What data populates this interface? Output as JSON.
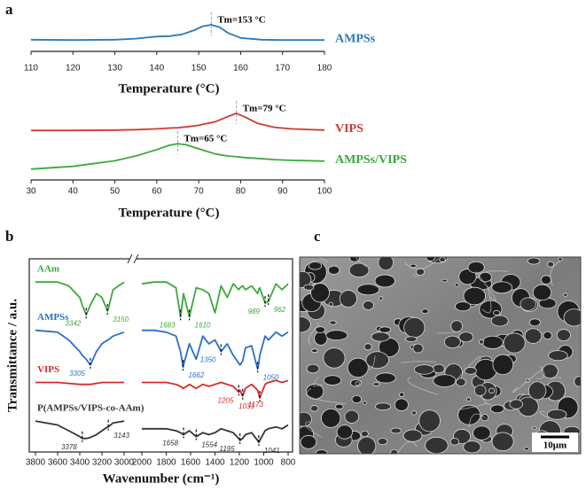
{
  "chart_data": [
    {
      "type": "line",
      "panel": "a",
      "x_label": "Temperature (°C)",
      "xlim": [
        110,
        180
      ],
      "xticks": [
        110,
        120,
        130,
        140,
        150,
        160,
        170,
        180
      ],
      "ylim": [
        0,
        10
      ],
      "x": [
        110,
        120,
        130,
        135,
        140,
        143,
        146,
        149,
        151,
        153,
        155,
        157,
        160,
        165,
        170,
        180
      ],
      "series": [
        {
          "name": "AMPSs",
          "color": "#2a7ab9",
          "values": [
            3.3,
            3.2,
            3.3,
            3.6,
            4.2,
            4.3,
            4.8,
            6.0,
            7.1,
            7.5,
            6.8,
            5.2,
            3.8,
            3.3,
            3.2,
            3.2
          ]
        }
      ],
      "annotations": [
        {
          "text": "Tm=153 °C",
          "x": 153,
          "y": 7.5
        }
      ]
    },
    {
      "type": "line",
      "x_label": "Temperature (°C)",
      "xlim": [
        30,
        100
      ],
      "xticks": [
        30,
        40,
        50,
        60,
        70,
        80,
        90,
        100
      ],
      "ylim": [
        0,
        20
      ],
      "x": [
        30,
        40,
        50,
        55,
        60,
        63,
        65,
        67,
        70,
        74,
        77,
        79,
        81,
        84,
        88,
        92,
        100
      ],
      "series": [
        {
          "name": "VIPS",
          "color": "#d03a2f",
          "values": [
            12.4,
            12.4,
            12.5,
            12.6,
            12.8,
            13.0,
            13.1,
            13.3,
            13.7,
            14.6,
            15.9,
            16.7,
            15.8,
            14.2,
            13.2,
            12.8,
            12.5
          ]
        },
        {
          "name": "AMPSs/VIPS",
          "color": "#3ca83c",
          "values": [
            2.7,
            3.4,
            4.8,
            6.0,
            7.6,
            8.7,
            9.1,
            8.8,
            7.8,
            6.5,
            6.0,
            5.8,
            5.6,
            5.4,
            5.1,
            4.9,
            4.7
          ]
        }
      ],
      "annotations": [
        {
          "text": "Tm=79 °C",
          "x": 79,
          "y": 16.7
        },
        {
          "text": "Tm=65 °C",
          "x": 65,
          "y": 9.1
        }
      ]
    },
    {
      "type": "line",
      "panel": "b",
      "x_label": "Wavenumber (cm⁻¹)",
      "y_label": "Transmittance / a.u.",
      "xlim": [
        3800,
        800
      ],
      "xbreak": [
        3000,
        2000
      ],
      "xticks": [
        3800,
        3600,
        3400,
        3200,
        3000,
        2000,
        1800,
        1600,
        1400,
        1200,
        1000,
        800
      ],
      "ylim": [
        0,
        100
      ],
      "x": [
        3800,
        3600,
        3500,
        3400,
        3378,
        3342,
        3305,
        3250,
        3200,
        3150,
        3143,
        3100,
        3000,
        2500,
        2000,
        1900,
        1800,
        1720,
        1683,
        1662,
        1658,
        1610,
        1554,
        1500,
        1450,
        1400,
        1350,
        1300,
        1250,
        1205,
        1195,
        1173,
        1150,
        1100,
        1050,
        1041,
        1033,
        989,
        962,
        900,
        850,
        800
      ],
      "series": [
        {
          "name": "AAm",
          "color": "#3ca83c",
          "peaks": [
            3342,
            3150,
            1683,
            1610,
            989,
            962
          ],
          "values": [
            88,
            88,
            86,
            80,
            76,
            71,
            76,
            82,
            80,
            73,
            74,
            84,
            88,
            null,
            87,
            88,
            88,
            85,
            70,
            80,
            82,
            70,
            85,
            84,
            82,
            72,
            86,
            80,
            87,
            84,
            85,
            86,
            84,
            86,
            82,
            84,
            85,
            77,
            78,
            87,
            84,
            87
          ]
        },
        {
          "name": "AMPSs",
          "color": "#2a6fc9",
          "peaks": [
            3305,
            1662,
            1350,
            1050
          ],
          "values": [
            63,
            62,
            58,
            52,
            50,
            48,
            45,
            52,
            56,
            58,
            58,
            60,
            62,
            null,
            63,
            63,
            62,
            60,
            52,
            44,
            45,
            56,
            48,
            60,
            56,
            58,
            52,
            56,
            50,
            46,
            45,
            47,
            54,
            55,
            43,
            46,
            50,
            60,
            58,
            62,
            60,
            62
          ]
        },
        {
          "name": "VIPS",
          "color": "#d82a2a",
          "peaks": [
            1205,
            1173,
            1033
          ],
          "values": [
            36,
            36,
            35.5,
            35,
            35,
            35,
            35,
            35.5,
            36,
            36,
            36,
            36,
            36,
            null,
            36,
            36,
            36,
            35,
            34,
            33,
            33,
            35,
            33,
            35,
            34,
            35,
            36,
            35,
            34,
            31,
            32,
            29,
            33,
            35,
            32,
            30,
            28,
            35,
            36,
            37,
            36,
            37
          ]
        },
        {
          "name": "P(AMPSs/VIPS-co-AAm)",
          "color": "#333333",
          "peaks": [
            3378,
            3143,
            1658,
            1554,
            1195,
            1041
          ],
          "values": [
            16,
            14,
            11,
            8,
            7,
            7,
            7.5,
            9,
            11,
            13,
            13,
            15,
            16,
            null,
            12,
            12,
            12,
            11,
            10,
            9,
            9,
            11,
            8,
            10,
            9,
            10,
            12,
            11,
            10,
            7,
            6,
            7,
            9,
            10,
            6,
            5,
            6,
            11,
            12,
            13,
            12,
            14
          ]
        }
      ]
    }
  ],
  "image": {
    "panel": "c",
    "scale_bar": "10μm"
  }
}
